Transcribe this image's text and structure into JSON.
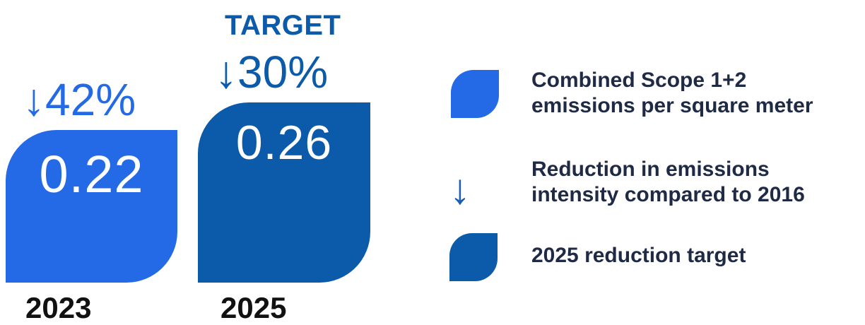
{
  "colors": {
    "actual": "#2469e5",
    "target": "#0b5baa",
    "text": "#1f2a44"
  },
  "chart_data": {
    "type": "bar",
    "categories": [
      "2023",
      "2025"
    ],
    "values": [
      0.22,
      0.26
    ],
    "value_labels": [
      "0.22",
      "0.26"
    ],
    "reductions": [
      "42%",
      "30%"
    ],
    "target_label": "TARGET",
    "ylim": [
      0,
      0.3
    ],
    "legend_position": "right"
  },
  "legend": {
    "items": [
      {
        "icon": "rounded-square-swatch",
        "line1": "Combined Scope 1+2",
        "line2": "emissions per square meter"
      },
      {
        "icon": "down-arrow-icon",
        "line1": "Reduction in emissions",
        "line2": "intensity compared to 2016"
      },
      {
        "icon": "rounded-square-swatch",
        "line1": "2025 reduction target",
        "line2": ""
      }
    ]
  }
}
